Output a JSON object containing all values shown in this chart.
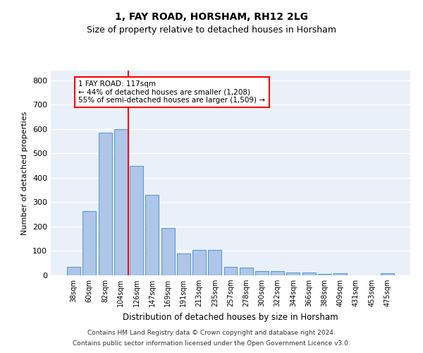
{
  "title1": "1, FAY ROAD, HORSHAM, RH12 2LG",
  "title2": "Size of property relative to detached houses in Horsham",
  "xlabel": "Distribution of detached houses by size in Horsham",
  "ylabel": "Number of detached properties",
  "categories": [
    "38sqm",
    "60sqm",
    "82sqm",
    "104sqm",
    "126sqm",
    "147sqm",
    "169sqm",
    "191sqm",
    "213sqm",
    "235sqm",
    "257sqm",
    "278sqm",
    "300sqm",
    "322sqm",
    "344sqm",
    "366sqm",
    "388sqm",
    "409sqm",
    "431sqm",
    "453sqm",
    "475sqm"
  ],
  "values": [
    35,
    265,
    585,
    600,
    450,
    330,
    195,
    90,
    103,
    105,
    35,
    32,
    17,
    17,
    13,
    11,
    5,
    8,
    0,
    0,
    8
  ],
  "bar_color": "#aec6e8",
  "bar_edgecolor": "#5b9bd5",
  "annotation_box_text": "1 FAY ROAD: 117sqm\n← 44% of detached houses are smaller (1,208)\n55% of semi-detached houses are larger (1,509) →",
  "box_edgecolor": "red",
  "vline_color": "red",
  "vline_x": 4.5,
  "ylim": [
    0,
    840
  ],
  "yticks": [
    0,
    100,
    200,
    300,
    400,
    500,
    600,
    700,
    800
  ],
  "footer1": "Contains HM Land Registry data © Crown copyright and database right 2024.",
  "footer2": "Contains public sector information licensed under the Open Government Licence v3.0.",
  "bg_color": "#eaf0f9",
  "grid_color": "#ffffff",
  "title1_fontsize": 10,
  "title2_fontsize": 9,
  "ylabel_fontsize": 8,
  "xlabel_fontsize": 8.5,
  "tick_fontsize": 7,
  "annot_fontsize": 7.5,
  "footer_fontsize": 6.5
}
